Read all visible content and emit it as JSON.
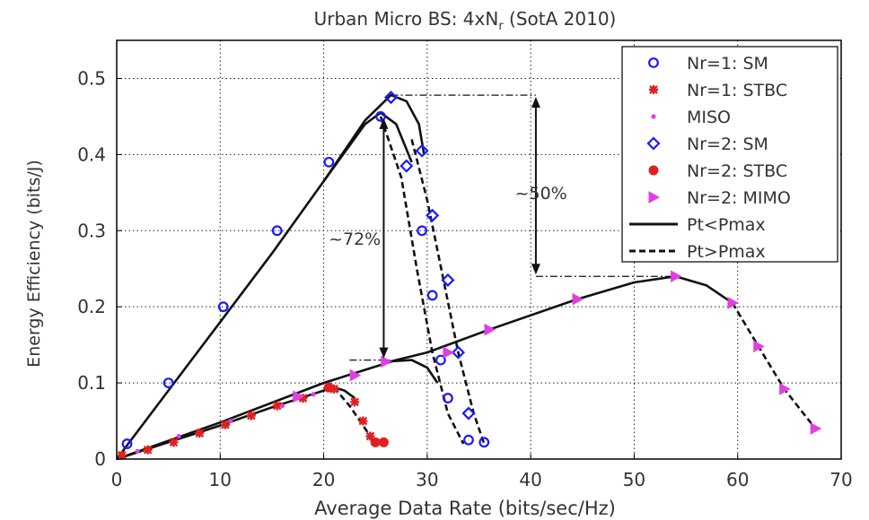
{
  "chart_data": {
    "type": "line",
    "title": "Urban Micro BS: 4xN",
    "title_sub": "r",
    "title_tail": " (SotA 2010)",
    "xlabel": "Average Data Rate (bits/sec/Hz)",
    "ylabel": "Energy Efficiency (bits/J)",
    "xlim": [
      0,
      70
    ],
    "ylim": [
      0,
      0.55
    ],
    "xticks": [
      0,
      10,
      20,
      30,
      40,
      50,
      60,
      70
    ],
    "yticks": [
      0,
      0.1,
      0.2,
      0.3,
      0.4,
      0.5
    ],
    "xtick_labels": [
      "0",
      "10",
      "20",
      "30",
      "40",
      "50",
      "60",
      "70"
    ],
    "ytick_labels": [
      "0",
      "0.1",
      "0.2",
      "0.3",
      "0.4",
      "0.5"
    ],
    "grid": true,
    "legend_position": "top-right",
    "annotations": [
      {
        "text": "~72%",
        "x": 23.0,
        "y": 0.29
      },
      {
        "text": "~50%",
        "x": 41.0,
        "y": 0.35
      }
    ],
    "legend": [
      {
        "label": "Nr=1: SM",
        "marker": "circle",
        "color": "#1a1aff"
      },
      {
        "label": "Nr=1: STBC",
        "marker": "star",
        "color": "#e02020"
      },
      {
        "label": "MISO",
        "marker": "dot",
        "color": "#e040e0"
      },
      {
        "label": "Nr=2: SM",
        "marker": "diamond",
        "color": "#1a1aff"
      },
      {
        "label": "Nr=2: STBC",
        "marker": "filled-circle",
        "color": "#e02020"
      },
      {
        "label": "Nr=2: MIMO",
        "marker": "triangle-right",
        "color": "#e040e0"
      },
      {
        "label": "Pt<Pmax",
        "line": "solid",
        "color": "#111111"
      },
      {
        "label": "Pt>Pmax",
        "line": "dashed",
        "color": "#111111"
      }
    ],
    "series": [
      {
        "name": "Nr=1: SM",
        "marker": "circle",
        "color": "#1a1aff",
        "x": [
          1,
          5,
          10.3,
          15.5,
          20.5,
          25.5,
          29.5,
          30.5,
          31.3,
          32,
          34,
          35.5
        ],
        "y": [
          0.02,
          0.1,
          0.2,
          0.3,
          0.39,
          0.45,
          0.3,
          0.215,
          0.13,
          0.08,
          0.025,
          0.022
        ]
      },
      {
        "name": "Nr=1: STBC",
        "marker": "star",
        "color": "#e02020",
        "x": [
          0.5,
          3,
          5.5,
          8,
          10.5,
          13,
          15.5,
          18,
          21,
          23,
          23.8,
          24.5
        ],
        "y": [
          0.005,
          0.012,
          0.022,
          0.034,
          0.045,
          0.057,
          0.07,
          0.08,
          0.092,
          0.075,
          0.05,
          0.03
        ]
      },
      {
        "name": "MISO",
        "marker": "dot",
        "color": "#e040e0",
        "x": [
          2,
          6,
          11,
          16,
          19
        ],
        "y": [
          0.01,
          0.03,
          0.05,
          0.07,
          0.085
        ]
      },
      {
        "name": "Nr=2: SM",
        "marker": "diamond",
        "color": "#1a1aff",
        "x": [
          26.5,
          28,
          29.5,
          30.5,
          32,
          33,
          34
        ],
        "y": [
          0.475,
          0.385,
          0.405,
          0.32,
          0.235,
          0.14,
          0.06
        ]
      },
      {
        "name": "Nr=2: STBC",
        "marker": "filled-circle",
        "color": "#e02020",
        "x": [
          20.5,
          25,
          25.8
        ],
        "y": [
          0.094,
          0.022,
          0.022
        ]
      },
      {
        "name": "Nr=2: MIMO",
        "marker": "triangle-right",
        "color": "#e040e0",
        "x": [
          17.5,
          23,
          26,
          32,
          36,
          44.5,
          54,
          59.5,
          62,
          64.5,
          67.5
        ],
        "y": [
          0.082,
          0.11,
          0.128,
          0.14,
          0.17,
          0.21,
          0.24,
          0.205,
          0.148,
          0.092,
          0.04
        ]
      }
    ],
    "curves": [
      {
        "name": "Nr=1 SM Pt<Pmax",
        "style": "solid",
        "x": [
          0,
          5,
          10,
          15,
          20,
          24,
          25.5,
          27,
          28.5
        ],
        "y": [
          0,
          0.09,
          0.18,
          0.27,
          0.365,
          0.44,
          0.455,
          0.44,
          0.39
        ]
      },
      {
        "name": "Nr=1 SM Pt>Pmax",
        "style": "dashed",
        "x": [
          25.5,
          27.5,
          29,
          30.5,
          32,
          33.5
        ],
        "y": [
          0.45,
          0.37,
          0.25,
          0.14,
          0.06,
          0.02
        ]
      },
      {
        "name": "Nr=2 SM Pt<Pmax",
        "style": "solid",
        "x": [
          20,
          24,
          26.5,
          28,
          29.2,
          29.7
        ],
        "y": [
          0.365,
          0.445,
          0.478,
          0.47,
          0.44,
          0.4
        ]
      },
      {
        "name": "Nr=2 SM Pt>Pmax",
        "style": "dashed",
        "x": [
          28.5,
          30,
          31.5,
          33,
          34.5,
          35.5
        ],
        "y": [
          0.42,
          0.34,
          0.24,
          0.14,
          0.06,
          0.02
        ]
      },
      {
        "name": "STBC Pt<Pmax",
        "style": "solid",
        "x": [
          0,
          5,
          10,
          15,
          20,
          21,
          22,
          23
        ],
        "y": [
          0,
          0.022,
          0.044,
          0.068,
          0.09,
          0.094,
          0.09,
          0.08
        ]
      },
      {
        "name": "STBC Pt>Pmax",
        "style": "dashed",
        "x": [
          21,
          22.5,
          24,
          25
        ],
        "y": [
          0.094,
          0.07,
          0.04,
          0.02
        ]
      },
      {
        "name": "MIMO Pt<Pmax",
        "style": "solid",
        "x": [
          0,
          10,
          20,
          27,
          30,
          36,
          44.5,
          50,
          54,
          57,
          59.5
        ],
        "y": [
          0,
          0.048,
          0.1,
          0.13,
          0.14,
          0.17,
          0.21,
          0.232,
          0.24,
          0.228,
          0.205
        ]
      },
      {
        "name": "MIMO Pt>Pmax",
        "style": "dashed",
        "x": [
          59.5,
          62,
          64.5,
          67.5
        ],
        "y": [
          0.205,
          0.148,
          0.092,
          0.04
        ]
      },
      {
        "name": "MISO bend Pt<Pmax",
        "style": "solid",
        "x": [
          26,
          28.5,
          30,
          31
        ],
        "y": [
          0.128,
          0.13,
          0.12,
          0.1
        ]
      }
    ],
    "reference_lines": [
      {
        "style": "dashdot",
        "x": [
          26.5,
          40.5
        ],
        "y": [
          0.478,
          0.478
        ]
      },
      {
        "style": "dashdot",
        "x": [
          40.5,
          54
        ],
        "y": [
          0.24,
          0.24
        ]
      },
      {
        "style": "dashdot",
        "x": [
          22.5,
          28
        ],
        "y": [
          0.13,
          0.13
        ]
      }
    ],
    "arrows": [
      {
        "x": 25.8,
        "y_from": 0.45,
        "y_to": 0.13
      },
      {
        "x": 40.5,
        "y_from": 0.478,
        "y_to": 0.24
      }
    ]
  }
}
